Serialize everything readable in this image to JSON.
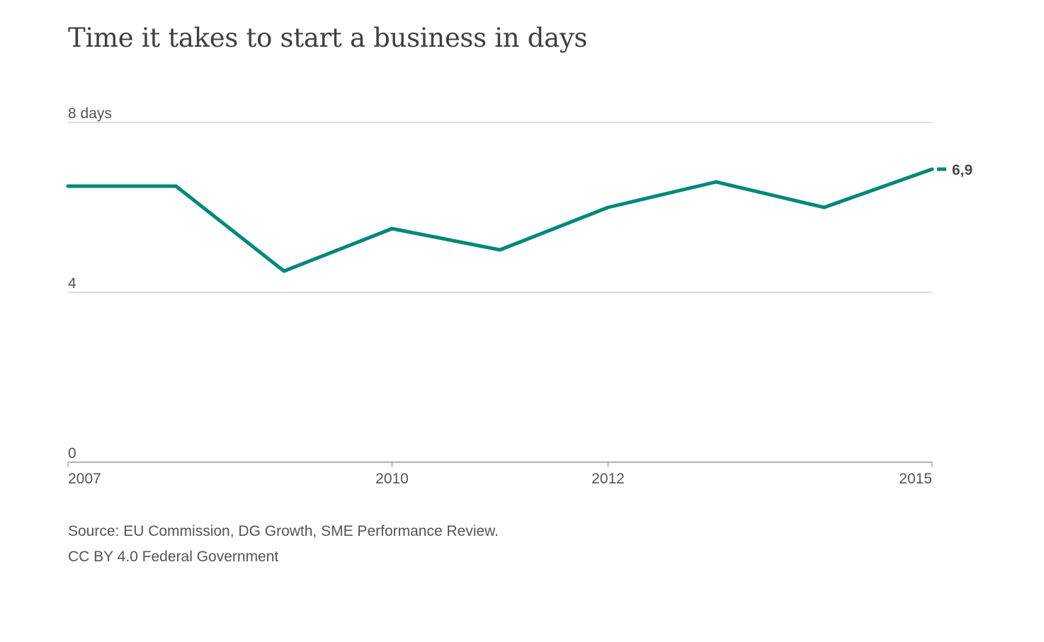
{
  "chart_data": {
    "type": "line",
    "title": "Time it takes to start a business in days",
    "xlabel": "",
    "ylabel": "",
    "x": [
      2007,
      2008,
      2009,
      2010,
      2011,
      2012,
      2013,
      2014,
      2015
    ],
    "series": [
      {
        "values": [
          6.5,
          6.5,
          4.5,
          5.5,
          5.0,
          6.0,
          6.6,
          6.0,
          6.9
        ]
      }
    ],
    "xlim": [
      2007,
      2015
    ],
    "ylim": [
      0,
      8
    ],
    "x_ticks": [
      {
        "value": 2007,
        "label": "2007"
      },
      {
        "value": 2010,
        "label": "2010"
      },
      {
        "value": 2012,
        "label": "2012"
      },
      {
        "value": 2015,
        "label": "2015"
      }
    ],
    "y_ticks": [
      {
        "value": 8,
        "label": "8 days"
      },
      {
        "value": 4,
        "label": "4"
      },
      {
        "value": 0,
        "label": "0"
      }
    ],
    "end_label": "6,9",
    "grid": true,
    "line_color": "#00877a",
    "grid_color": "#cccccc",
    "axis_color": "#999999"
  },
  "footer": {
    "source": "Source: EU Commission, DG Growth, SME Performance Review.",
    "license": "CC BY 4.0 Federal Government"
  }
}
